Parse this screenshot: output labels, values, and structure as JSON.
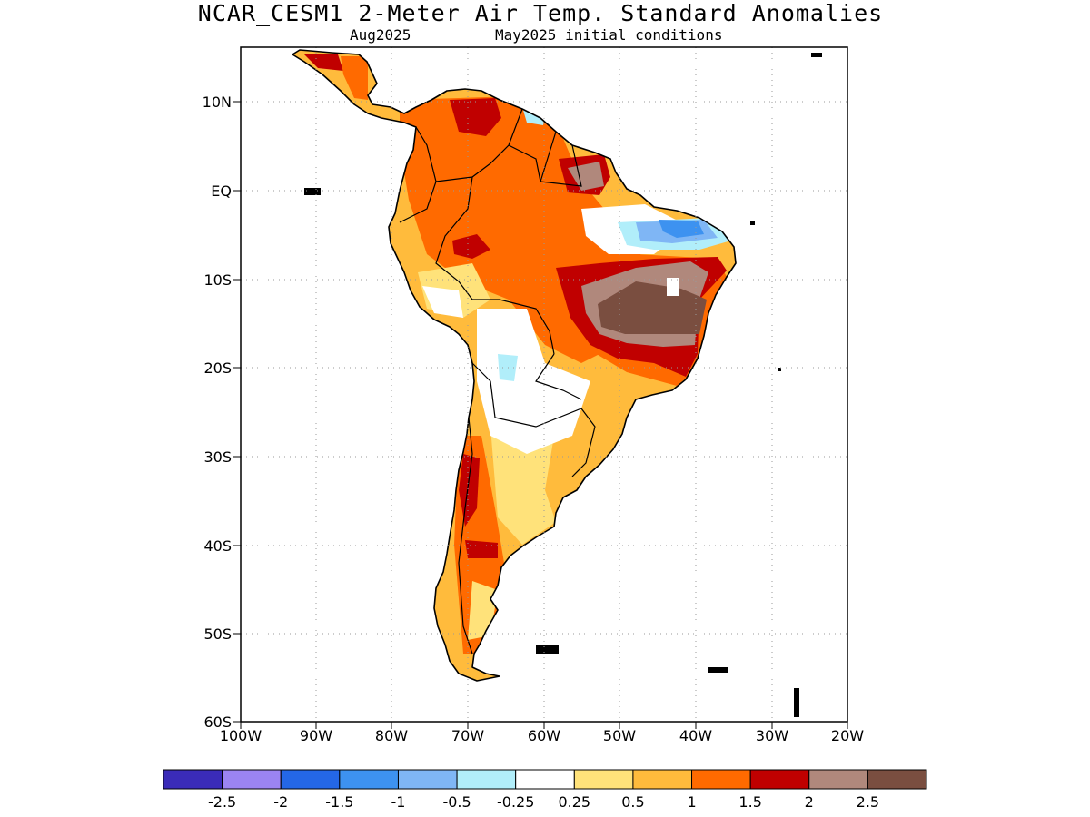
{
  "title": "NCAR_CESM1 2-Meter Air Temp. Standard Anomalies",
  "subtitle_left": "Aug2025",
  "subtitle_right": "May2025 initial conditions",
  "lat_labels": [
    "10N",
    "EQ",
    "10S",
    "20S",
    "30S",
    "40S",
    "50S",
    "60S"
  ],
  "lon_labels": [
    "100W",
    "90W",
    "80W",
    "70W",
    "60W",
    "50W",
    "40W",
    "30W",
    "20W"
  ],
  "colorbar": {
    "colors": [
      "#3a2bb8",
      "#9b84f2",
      "#2467e6",
      "#3d92f0",
      "#7fb6f5",
      "#b1eefa",
      "#ffffff",
      "#ffe27a",
      "#ffbb3c",
      "#ff6a00",
      "#c00000",
      "#b0887c",
      "#7a4e40"
    ],
    "labels": [
      "-2.5",
      "-2",
      "-1.5",
      "-1",
      "-0.5",
      "-0.25",
      "0.25",
      "0.5",
      "1",
      "1.5",
      "2",
      "2.5"
    ]
  }
}
